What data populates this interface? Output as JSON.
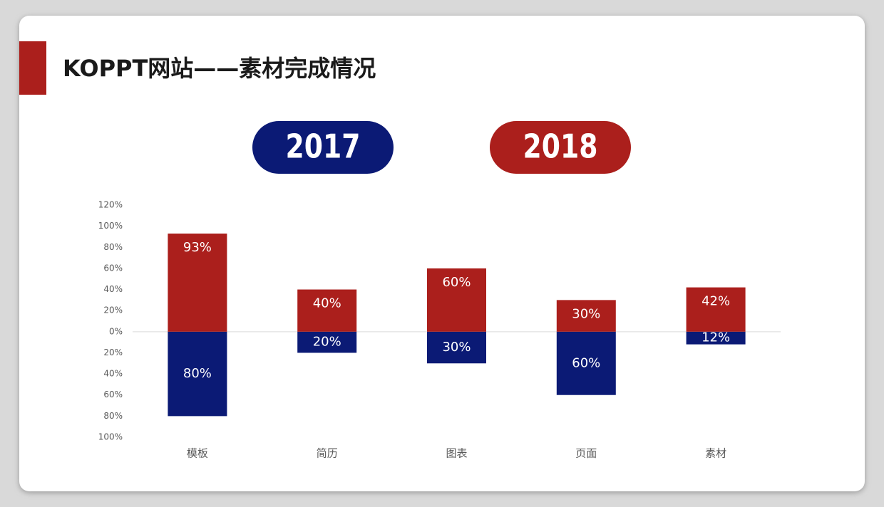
{
  "chart_data": {
    "type": "diverging-bar",
    "title": "KOPPT网站——素材完成情况",
    "categories": [
      "模板",
      "简历",
      "图表",
      "页面",
      "素材"
    ],
    "series": [
      {
        "name": "2017",
        "color": "#0b1a75",
        "values": [
          -80,
          -20,
          -30,
          -60,
          -12
        ],
        "value_labels": [
          "80%",
          "20%",
          "30%",
          "60%",
          "12%"
        ]
      },
      {
        "name": "2018",
        "color": "#ab1f1c",
        "values": [
          93,
          40,
          60,
          30,
          42
        ],
        "value_labels": [
          "93%",
          "40%",
          "60%",
          "30%",
          "42%"
        ]
      }
    ],
    "ylim": [
      -100,
      120
    ],
    "yticks": [
      {
        "value": 120,
        "label": "120%"
      },
      {
        "value": 100,
        "label": "100%"
      },
      {
        "value": 80,
        "label": "80%"
      },
      {
        "value": 60,
        "label": "60%"
      },
      {
        "value": 40,
        "label": "40%"
      },
      {
        "value": 20,
        "label": "20%"
      },
      {
        "value": 0,
        "label": "0%"
      },
      {
        "value": -20,
        "label": "20%"
      },
      {
        "value": -40,
        "label": "40%"
      },
      {
        "value": -60,
        "label": "60%"
      },
      {
        "value": -80,
        "label": "80%"
      },
      {
        "value": -100,
        "label": "100%"
      }
    ],
    "grid": false
  }
}
